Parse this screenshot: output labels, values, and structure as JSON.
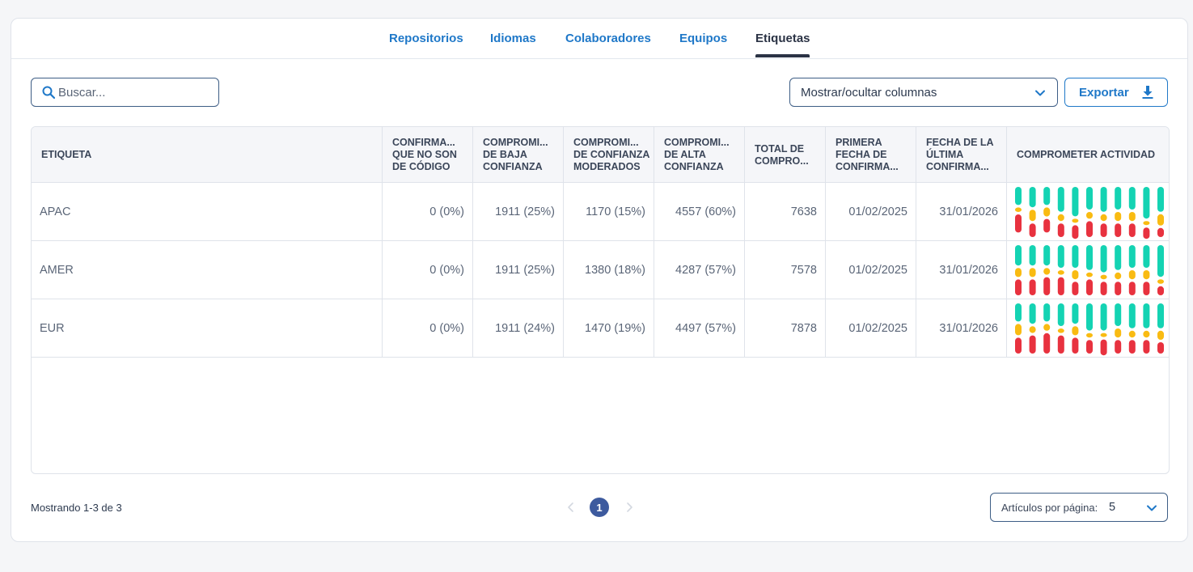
{
  "tabs": [
    {
      "label": "Repositorios"
    },
    {
      "label": "Idiomas"
    },
    {
      "label": "Colaboradores"
    },
    {
      "label": "Equipos"
    },
    {
      "label": "Etiquetas"
    }
  ],
  "active_tab": "Etiquetas",
  "search": {
    "placeholder": "Buscar..."
  },
  "column_toggle": {
    "label": "Mostrar/ocultar columnas"
  },
  "export": {
    "label": "Exportar"
  },
  "table": {
    "headers": [
      "ETIQUETA",
      "CONFIRMA... QUE NO SON DE CÓDIGO",
      "COMPROMI... DE BAJA CONFIANZA",
      "COMPROMI... DE CONFIANZA MODERADOS",
      "COMPROMI... DE ALTA CONFIANZA",
      "TOTAL DE COMPRO...",
      "PRIMERA FECHA DE CONFIRMA...",
      "FECHA DE LA ÚLTIMA CONFIRMA...",
      "COMPROMETER ACTIVIDAD"
    ],
    "rows": [
      {
        "label": "APAC",
        "non_code": "0 (0%)",
        "low": "1911 (25%)",
        "moderate": "1170 (15%)",
        "high": "4557 (60%)",
        "total": "7638",
        "first": "01/02/2025",
        "last": "31/01/2026"
      },
      {
        "label": "AMER",
        "non_code": "0 (0%)",
        "low": "1911 (25%)",
        "moderate": "1380 (18%)",
        "high": "4287 (57%)",
        "total": "7578",
        "first": "01/02/2025",
        "last": "31/01/2026"
      },
      {
        "label": "EUR",
        "non_code": "0 (0%)",
        "low": "1911 (24%)",
        "moderate": "1470 (19%)",
        "high": "4497 (57%)",
        "total": "7878",
        "first": "01/02/2025",
        "last": "31/01/2026"
      }
    ]
  },
  "activity_colors": {
    "high": "#14d3b3",
    "moderate": "#f9bb12",
    "low": "#e8323f"
  },
  "activity": [
    [
      [
        0.4,
        0.1,
        0.4
      ],
      [
        0.45,
        0.25,
        0.3
      ],
      [
        0.4,
        0.2,
        0.3
      ],
      [
        0.55,
        0.15,
        0.3
      ],
      [
        0.65,
        0.05,
        0.3
      ],
      [
        0.5,
        0.15,
        0.35
      ],
      [
        0.55,
        0.15,
        0.3
      ],
      [
        0.5,
        0.2,
        0.3
      ],
      [
        0.5,
        0.2,
        0.3
      ],
      [
        0.7,
        0.05,
        0.25
      ],
      [
        0.55,
        0.25,
        0.2
      ]
    ],
    [
      [
        0.45,
        0.2,
        0.35
      ],
      [
        0.45,
        0.2,
        0.35
      ],
      [
        0.45,
        0.15,
        0.4
      ],
      [
        0.5,
        0.1,
        0.4
      ],
      [
        0.5,
        0.2,
        0.3
      ],
      [
        0.55,
        0.1,
        0.35
      ],
      [
        0.6,
        0.1,
        0.3
      ],
      [
        0.55,
        0.15,
        0.3
      ],
      [
        0.5,
        0.2,
        0.3
      ],
      [
        0.5,
        0.2,
        0.3
      ],
      [
        0.7,
        0.1,
        0.2
      ]
    ],
    [
      [
        0.4,
        0.25,
        0.35
      ],
      [
        0.45,
        0.15,
        0.4
      ],
      [
        0.4,
        0.15,
        0.45
      ],
      [
        0.5,
        0.1,
        0.4
      ],
      [
        0.45,
        0.2,
        0.35
      ],
      [
        0.6,
        0.1,
        0.3
      ],
      [
        0.6,
        0.05,
        0.35
      ],
      [
        0.5,
        0.2,
        0.3
      ],
      [
        0.55,
        0.15,
        0.3
      ],
      [
        0.55,
        0.15,
        0.3
      ],
      [
        0.55,
        0.2,
        0.25
      ]
    ]
  ],
  "footer": {
    "showing": "Mostrando 1-3 de 3",
    "page": "1"
  },
  "per_page": {
    "label": "Artículos por página:",
    "value": "5"
  }
}
